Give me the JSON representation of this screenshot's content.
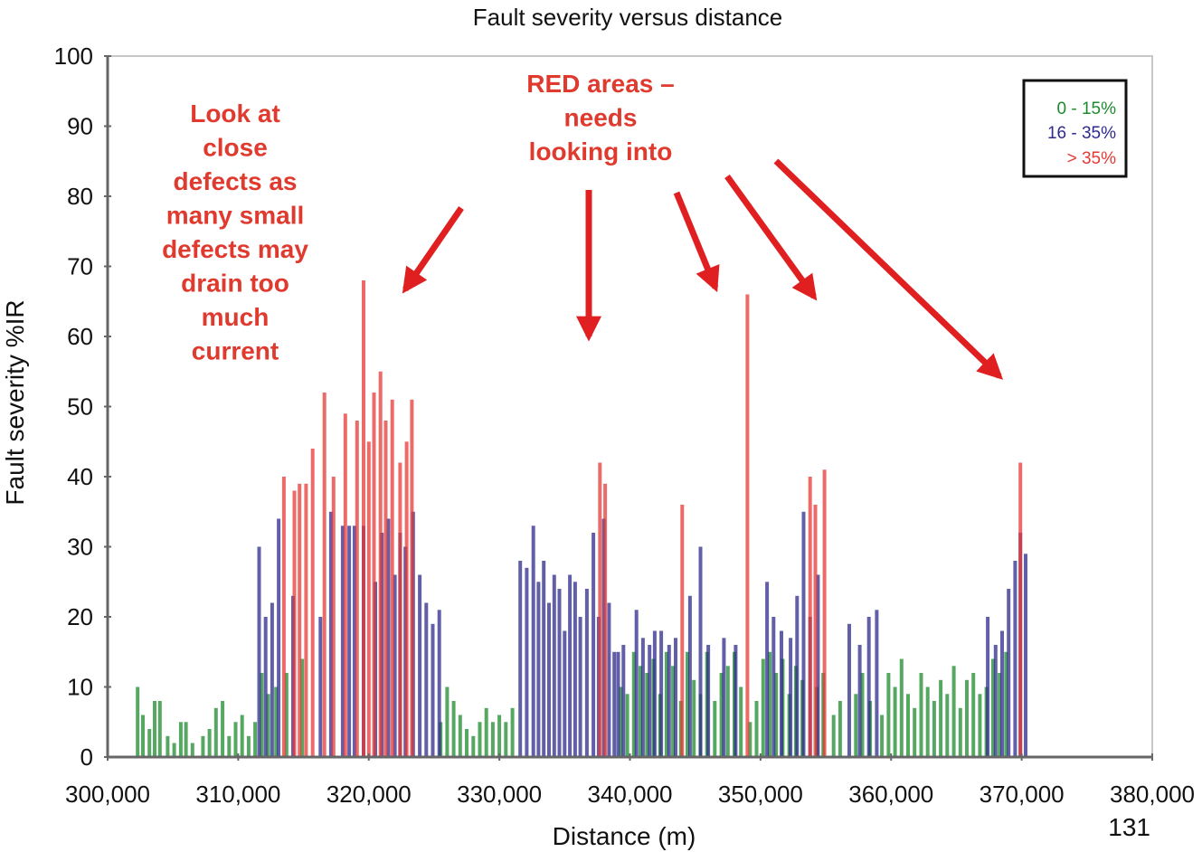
{
  "page_number": "131",
  "annotations": [
    {
      "id": "close-defects",
      "lines": [
        "Look at",
        "close",
        "defects as",
        "many small",
        "defects may",
        "drain too",
        "much",
        "current"
      ]
    },
    {
      "id": "red-areas",
      "lines": [
        "RED areas –",
        "needs",
        "looking into"
      ]
    }
  ],
  "chart_data": {
    "type": "bar",
    "title": "Fault severity versus distance",
    "xlabel": "Distance (m)",
    "ylabel": "Fault severity %IR",
    "xlim": [
      300000,
      380000
    ],
    "ylim": [
      0,
      100
    ],
    "xticks": [
      300000,
      310000,
      320000,
      330000,
      340000,
      350000,
      360000,
      370000,
      380000
    ],
    "xtick_labels": [
      "300,000",
      "310,000",
      "320,000",
      "330,000",
      "340,000",
      "350,000",
      "360,000",
      "370,000",
      "380,000"
    ],
    "yticks": [
      0,
      10,
      20,
      30,
      40,
      50,
      60,
      70,
      80,
      90,
      100
    ],
    "ytick_labels": [
      "0",
      "10",
      "20",
      "30",
      "40",
      "50",
      "60",
      "70",
      "80",
      "90",
      "100"
    ],
    "grid": false,
    "legend_position": "top-right",
    "colors": {
      "low": "#1e8a2e",
      "mid": "#2e2a8c",
      "high": "#e53935",
      "arrow": "#e02020"
    },
    "series": [
      {
        "name": "0 - 15%",
        "color": "#1e8a2e",
        "points": [
          [
            302300,
            10
          ],
          [
            302700,
            6
          ],
          [
            303200,
            4
          ],
          [
            303600,
            8
          ],
          [
            304000,
            8
          ],
          [
            304600,
            3
          ],
          [
            305100,
            2
          ],
          [
            305600,
            5
          ],
          [
            306000,
            5
          ],
          [
            306500,
            2
          ],
          [
            307300,
            3
          ],
          [
            307800,
            4
          ],
          [
            308300,
            7
          ],
          [
            308800,
            8
          ],
          [
            309300,
            3
          ],
          [
            309800,
            5
          ],
          [
            310300,
            6
          ],
          [
            310800,
            3
          ],
          [
            311300,
            5
          ],
          [
            311800,
            12
          ],
          [
            312300,
            9
          ],
          [
            312900,
            10
          ],
          [
            313700,
            12
          ],
          [
            314900,
            14
          ],
          [
            325500,
            5
          ],
          [
            326000,
            10
          ],
          [
            326500,
            8
          ],
          [
            327000,
            6
          ],
          [
            327500,
            4
          ],
          [
            328000,
            3
          ],
          [
            328500,
            5
          ],
          [
            329000,
            7
          ],
          [
            329500,
            5
          ],
          [
            330000,
            6
          ],
          [
            330500,
            5
          ],
          [
            331000,
            7
          ],
          [
            339300,
            10
          ],
          [
            339800,
            9
          ],
          [
            340300,
            15
          ],
          [
            340800,
            13
          ],
          [
            341300,
            12
          ],
          [
            341800,
            14
          ],
          [
            342300,
            9
          ],
          [
            342800,
            15
          ],
          [
            343300,
            13
          ],
          [
            343900,
            8
          ],
          [
            344400,
            15
          ],
          [
            344900,
            11
          ],
          [
            345400,
            9
          ],
          [
            345900,
            15
          ],
          [
            346500,
            8
          ],
          [
            347000,
            12
          ],
          [
            347500,
            13
          ],
          [
            348000,
            15
          ],
          [
            348500,
            10
          ],
          [
            349200,
            5
          ],
          [
            349700,
            8
          ],
          [
            350200,
            14
          ],
          [
            350700,
            15
          ],
          [
            351200,
            12
          ],
          [
            351700,
            14
          ],
          [
            352200,
            9
          ],
          [
            352700,
            13
          ],
          [
            353200,
            11
          ],
          [
            354300,
            10
          ],
          [
            354800,
            12
          ],
          [
            355600,
            6
          ],
          [
            356100,
            8
          ],
          [
            357300,
            9
          ],
          [
            357800,
            12
          ],
          [
            358400,
            8
          ],
          [
            359300,
            6
          ],
          [
            359800,
            12
          ],
          [
            360300,
            10
          ],
          [
            360800,
            14
          ],
          [
            361300,
            9
          ],
          [
            361800,
            7
          ],
          [
            362300,
            12
          ],
          [
            362800,
            10
          ],
          [
            363300,
            8
          ],
          [
            363800,
            11
          ],
          [
            364300,
            9
          ],
          [
            364800,
            13
          ],
          [
            365300,
            7
          ],
          [
            365800,
            11
          ],
          [
            366300,
            12
          ],
          [
            366800,
            9
          ],
          [
            367300,
            10
          ],
          [
            367800,
            14
          ],
          [
            368300,
            12
          ],
          [
            368800,
            15
          ]
        ]
      },
      {
        "name": "16 - 35%",
        "color": "#2e2a8c",
        "points": [
          [
            311600,
            30
          ],
          [
            312100,
            20
          ],
          [
            312600,
            22
          ],
          [
            313100,
            34
          ],
          [
            314200,
            23
          ],
          [
            316300,
            20
          ],
          [
            317100,
            35
          ],
          [
            318000,
            33
          ],
          [
            318500,
            33
          ],
          [
            318900,
            33
          ],
          [
            319600,
            33
          ],
          [
            320500,
            25
          ],
          [
            321000,
            32
          ],
          [
            321500,
            34
          ],
          [
            322000,
            26
          ],
          [
            322400,
            32
          ],
          [
            322800,
            30
          ],
          [
            323400,
            35
          ],
          [
            323900,
            26
          ],
          [
            324400,
            22
          ],
          [
            324900,
            19
          ],
          [
            325400,
            21
          ],
          [
            331600,
            28
          ],
          [
            332100,
            27
          ],
          [
            332600,
            33
          ],
          [
            333000,
            25
          ],
          [
            333400,
            28
          ],
          [
            333800,
            22
          ],
          [
            334200,
            26
          ],
          [
            334600,
            24
          ],
          [
            335000,
            18
          ],
          [
            335400,
            26
          ],
          [
            335800,
            25
          ],
          [
            336200,
            20
          ],
          [
            336700,
            24
          ],
          [
            337200,
            32
          ],
          [
            337600,
            20
          ],
          [
            338000,
            34
          ],
          [
            338400,
            22
          ],
          [
            338800,
            15
          ],
          [
            339100,
            15
          ],
          [
            339500,
            16
          ],
          [
            340500,
            21
          ],
          [
            341000,
            17
          ],
          [
            341500,
            16
          ],
          [
            341900,
            18
          ],
          [
            342400,
            18
          ],
          [
            343000,
            16
          ],
          [
            343500,
            17
          ],
          [
            344600,
            23
          ],
          [
            345400,
            30
          ],
          [
            346000,
            16
          ],
          [
            347200,
            17
          ],
          [
            348100,
            16
          ],
          [
            350500,
            25
          ],
          [
            351000,
            20
          ],
          [
            351600,
            18
          ],
          [
            352300,
            17
          ],
          [
            352800,
            23
          ],
          [
            353300,
            35
          ],
          [
            353800,
            20
          ],
          [
            354400,
            26
          ],
          [
            356800,
            19
          ],
          [
            357600,
            16
          ],
          [
            358300,
            20
          ],
          [
            358900,
            21
          ],
          [
            367400,
            20
          ],
          [
            368000,
            16
          ],
          [
            368500,
            18
          ],
          [
            369000,
            24
          ],
          [
            369500,
            28
          ],
          [
            369900,
            32
          ],
          [
            370300,
            29
          ]
        ]
      },
      {
        "name": "> 35%",
        "color": "#e53935",
        "points": [
          [
            313500,
            40
          ],
          [
            314300,
            38
          ],
          [
            314700,
            39
          ],
          [
            315200,
            39
          ],
          [
            315700,
            44
          ],
          [
            316600,
            52
          ],
          [
            317300,
            40
          ],
          [
            318200,
            49
          ],
          [
            319100,
            48
          ],
          [
            319600,
            68
          ],
          [
            320000,
            45
          ],
          [
            320400,
            52
          ],
          [
            320900,
            55
          ],
          [
            321300,
            48
          ],
          [
            321800,
            51
          ],
          [
            322400,
            42
          ],
          [
            322900,
            45
          ],
          [
            323300,
            51
          ],
          [
            337700,
            42
          ],
          [
            338100,
            39
          ],
          [
            344000,
            36
          ],
          [
            349000,
            66
          ],
          [
            353800,
            40
          ],
          [
            354200,
            36
          ],
          [
            354900,
            41
          ],
          [
            369900,
            42
          ]
        ]
      }
    ]
  }
}
